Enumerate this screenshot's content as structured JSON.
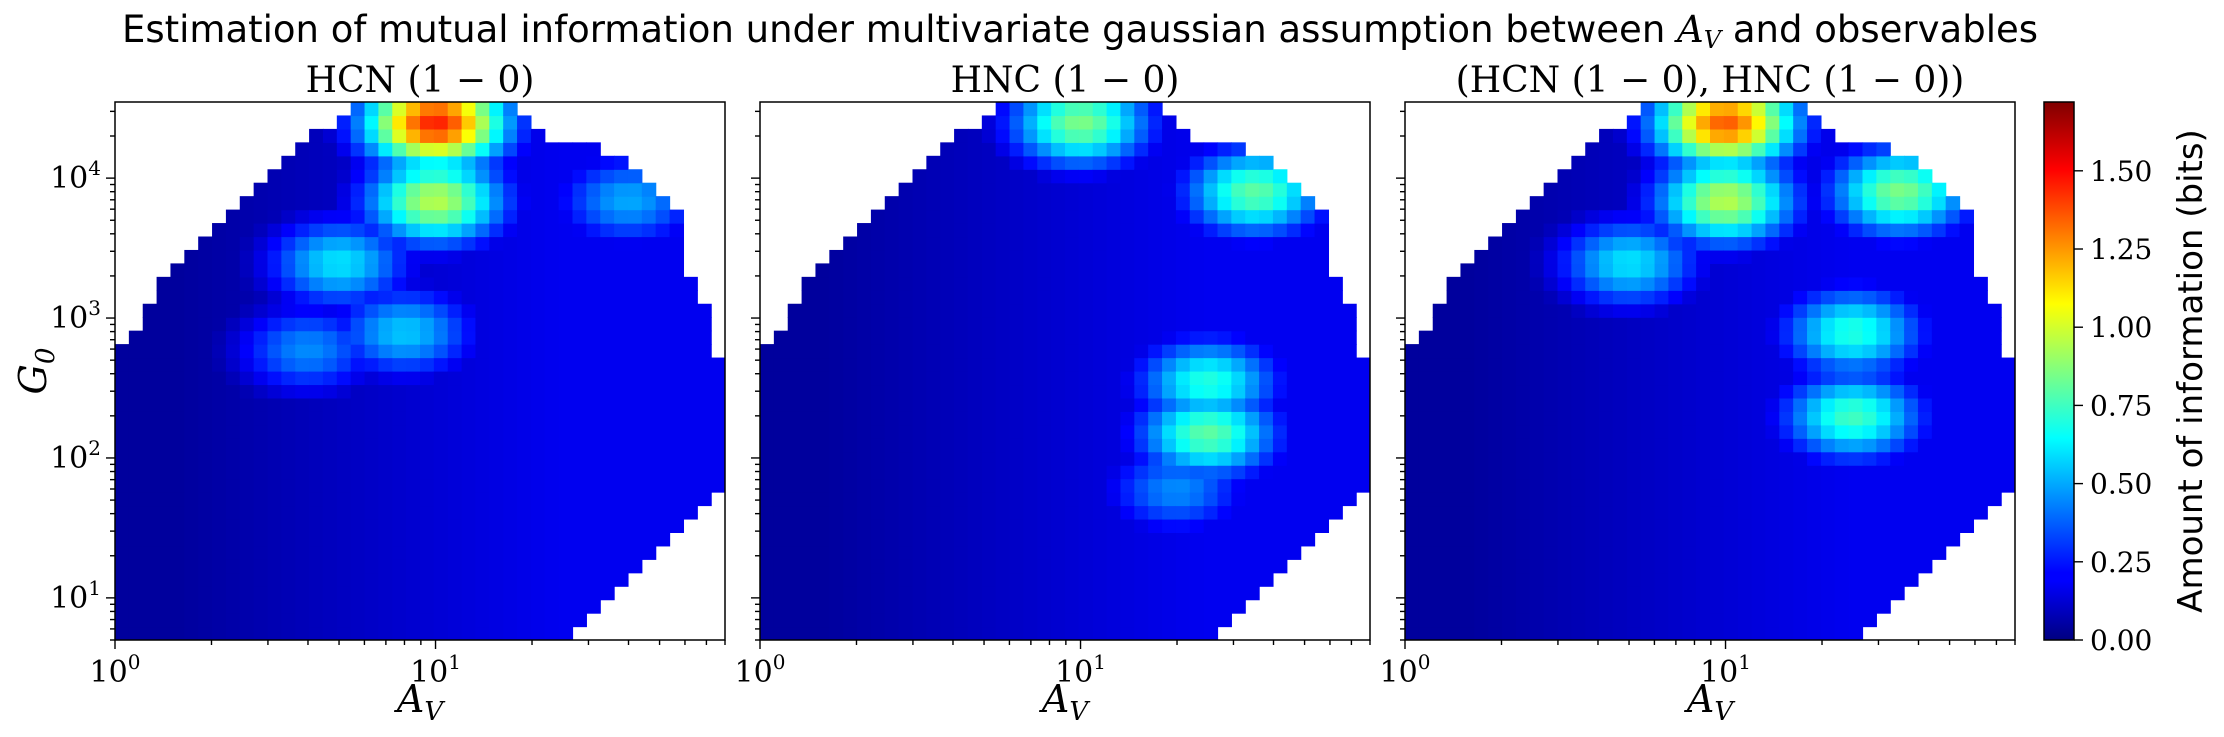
{
  "figure": {
    "title": "Estimation of mutual information under multivariate gaussian assumption between A_V and observables"
  },
  "colorbar": {
    "label": "Amount of information (bits)",
    "ticks": [
      "0.00",
      "0.25",
      "0.50",
      "0.75",
      "1.00",
      "1.25",
      "1.50"
    ],
    "colormap": "jet",
    "range": [
      0,
      1.72
    ]
  },
  "chart_data": [
    {
      "type": "heatmap",
      "title": "HCN (1 − 0)",
      "xlabel": "A_V",
      "ylabel": "G_0",
      "x_scale": "log",
      "y_scale": "log",
      "xlim": [
        1,
        80
      ],
      "ylim": [
        5,
        35000
      ],
      "x_ticks": [
        "10^0",
        "10^1"
      ],
      "y_ticks": [
        "10^1",
        "10^2",
        "10^3",
        "10^4"
      ],
      "hotspots": [
        {
          "AV": 10,
          "G0": 25000,
          "bits": 1.45
        },
        {
          "AV": 10,
          "G0": 7000,
          "bits": 0.95
        },
        {
          "AV": 5,
          "G0": 2500,
          "bits": 0.6
        },
        {
          "AV": 8,
          "G0": 800,
          "bits": 0.55
        },
        {
          "AV": 40,
          "G0": 7000,
          "bits": 0.5
        },
        {
          "AV": 4,
          "G0": 600,
          "bits": 0.45
        }
      ]
    },
    {
      "type": "heatmap",
      "title": "HNC (1 − 0)",
      "xlabel": "A_V",
      "ylabel": "",
      "x_scale": "log",
      "y_scale": "log",
      "xlim": [
        1,
        80
      ],
      "ylim": [
        5,
        35000
      ],
      "x_ticks": [
        "10^0",
        "10^1"
      ],
      "y_ticks": [],
      "hotspots": [
        {
          "AV": 10,
          "G0": 25000,
          "bits": 0.85
        },
        {
          "AV": 35,
          "G0": 8000,
          "bits": 0.8
        },
        {
          "AV": 25,
          "G0": 150,
          "bits": 0.8
        },
        {
          "AV": 25,
          "G0": 350,
          "bits": 0.7
        },
        {
          "AV": 20,
          "G0": 60,
          "bits": 0.45
        }
      ]
    },
    {
      "type": "heatmap",
      "title": "(HCN (1 − 0), HNC (1 − 0))",
      "xlabel": "A_V",
      "ylabel": "",
      "x_scale": "log",
      "y_scale": "log",
      "xlim": [
        1,
        80
      ],
      "ylim": [
        5,
        35000
      ],
      "x_ticks": [
        "10^0",
        "10^1"
      ],
      "y_ticks": [],
      "hotspots": [
        {
          "AV": 10,
          "G0": 25000,
          "bits": 1.35
        },
        {
          "AV": 10,
          "G0": 7000,
          "bits": 0.95
        },
        {
          "AV": 35,
          "G0": 8000,
          "bits": 0.85
        },
        {
          "AV": 5,
          "G0": 2500,
          "bits": 0.6
        },
        {
          "AV": 25,
          "G0": 200,
          "bits": 0.75
        },
        {
          "AV": 25,
          "G0": 800,
          "bits": 0.7
        }
      ]
    }
  ]
}
